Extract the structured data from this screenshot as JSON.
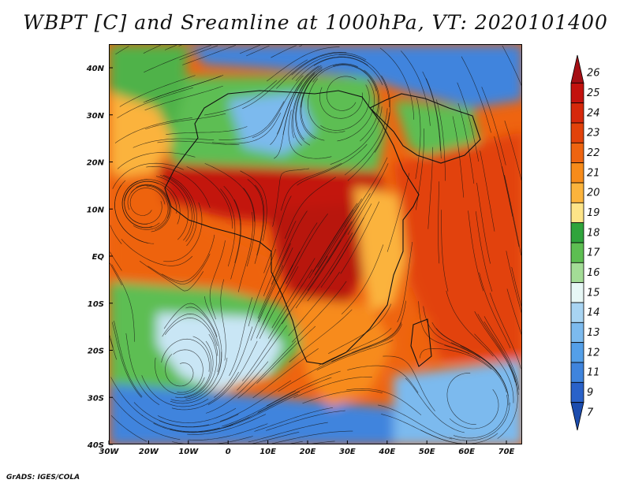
{
  "title": "WBPT [C] and Sreamline at 1000hPa, VT: 2020101400",
  "credit": "GrADS: IGES/COLA",
  "axes": {
    "lat_labels": [
      "40N",
      "30N",
      "20N",
      "10N",
      "EQ",
      "10S",
      "20S",
      "30S",
      "40S"
    ],
    "lon_labels": [
      "30W",
      "20W",
      "10W",
      "0",
      "10E",
      "20E",
      "30E",
      "40E",
      "50E",
      "60E",
      "70E"
    ]
  },
  "colorbar": {
    "levels": [
      "26",
      "25",
      "24",
      "23",
      "22",
      "21",
      "20",
      "19",
      "18",
      "17",
      "16",
      "15",
      "14",
      "13",
      "12",
      "11",
      "9",
      "7"
    ],
    "colors": [
      "#a50f15",
      "#c3120e",
      "#d6280b",
      "#e2420a",
      "#ee6410",
      "#f78b1a",
      "#fbb33c",
      "#fde488",
      "#2fa43c",
      "#5dbe52",
      "#a3dc96",
      "#e7f7f5",
      "#a8d4f2",
      "#7cbaee",
      "#549fe8",
      "#3f84dd",
      "#2a62c9",
      "#1c4cae"
    ]
  },
  "regions": [
    {
      "name": "north-africa-land-green",
      "color": "#5dbe52"
    },
    {
      "name": "sahara-blue-pocket",
      "color": "#7cbaee"
    },
    {
      "name": "mediterranean-blue",
      "color": "#3f84dd"
    },
    {
      "name": "atlantic-north-green",
      "color": "#4fb24a"
    },
    {
      "name": "atlantic-northwest-yellow",
      "color": "#fbb33c"
    },
    {
      "name": "tropical-atlantic-orange",
      "color": "#ee6410"
    },
    {
      "name": "sahel-belt-darkred",
      "color": "#c3120e"
    },
    {
      "name": "congo-basin-darkred",
      "color": "#b8120e"
    },
    {
      "name": "east-africa-highlands-yellow",
      "color": "#fbb33c"
    },
    {
      "name": "arabia-green",
      "color": "#5dbe52"
    },
    {
      "name": "indian-ocean-orange",
      "color": "#e2420a"
    },
    {
      "name": "south-atlantic-green",
      "color": "#5dbe52"
    },
    {
      "name": "south-atlantic-lightblue",
      "color": "#c9e6f5"
    },
    {
      "name": "southern-ocean-blue",
      "color": "#3f84dd"
    },
    {
      "name": "southern-africa-orange",
      "color": "#f78b1a"
    },
    {
      "name": "madagascar-orange",
      "color": "#ee6410"
    },
    {
      "name": "south-indian-blue",
      "color": "#7cbaee"
    }
  ]
}
